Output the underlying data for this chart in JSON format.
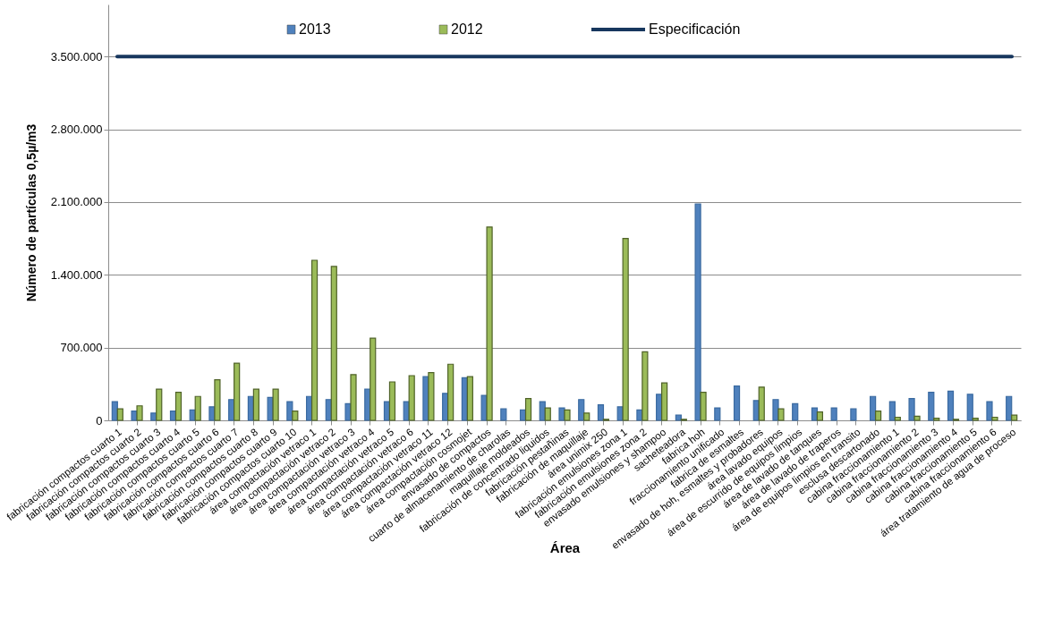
{
  "chart_data": {
    "type": "bar",
    "xlabel": "Área",
    "ylabel": "Número de partículas  0,5µ/m3",
    "categories": [
      "fabricación compactos cuarto 1",
      "fabricación compactos cuarto 2",
      "fabricación compactos cuarto 3",
      "fabricación compactos cuarto 4",
      "fabricación compactos cuarto 5",
      "fabricación compactos cuarto 6",
      "fabricación compactos cuarto 7",
      "fabricación compactos cuarto 8",
      "fabricación compactos cuarto 9",
      "fabricación compactos cuarto 10",
      "área compactación vetraco 1",
      "área compactación vetraco 2",
      "área compactación vetraco 3",
      "área compactación vetraco 4",
      "área compactación vetraco 5",
      "área compactación vetraco 6",
      "área compactación vetraco 11",
      "área compactación vetraco 12",
      "área  compactación cosmojet",
      "envasado de compactos",
      "cuarto de almacenamiento de charolas",
      "maquillaje  moldeados",
      "fabricación de concentrado liquidos",
      "fabricación  pestañinas",
      "fabricación de maquillaje",
      "área unimix 250",
      "fabricación emulsiones zona 1",
      "fabricación emulsiones zona 2",
      "envasado emulsiones y shampoo",
      "sacheteadora",
      "fabrica hoh",
      "fraccionamiento  unificado",
      "fabrica de esmaltes",
      "envasado de hoh, esmaltes y probadores",
      "área lavado equipos",
      "área de escurrido de equipos limpios",
      "área de lavado de tanques",
      "área de lavado de traperos",
      "área de equipos limpios en transito",
      "esclusa  descartonado",
      "cabina fraccionamiento 1",
      "cabina fraccionamiento 2",
      "cabina fraccionamiento 3",
      "cabina fraccionamiento 4",
      "cabina fraccionamiento 5",
      "cabina fraccionamiento 6",
      "área tratamiento de agua de proceso"
    ],
    "series": [
      {
        "name": "2013",
        "color": "#4f81bd",
        "values": [
          180000,
          90000,
          70000,
          90000,
          100000,
          130000,
          200000,
          230000,
          220000,
          180000,
          230000,
          200000,
          160000,
          300000,
          180000,
          180000,
          420000,
          260000,
          410000,
          240000,
          110000,
          100000,
          180000,
          120000,
          200000,
          150000,
          130000,
          100000,
          250000,
          50000,
          2080000,
          120000,
          330000,
          190000,
          200000,
          160000,
          120000,
          120000,
          110000,
          230000,
          180000,
          210000,
          270000,
          280000,
          250000,
          180000,
          230000
        ]
      },
      {
        "name": "2012",
        "color": "#9bbb59",
        "values": [
          110000,
          140000,
          300000,
          270000,
          230000,
          390000,
          550000,
          300000,
          300000,
          90000,
          1540000,
          1480000,
          440000,
          790000,
          370000,
          430000,
          460000,
          540000,
          420000,
          1860000,
          null,
          210000,
          120000,
          100000,
          70000,
          10000,
          1750000,
          660000,
          360000,
          10000,
          270000,
          null,
          null,
          320000,
          110000,
          null,
          80000,
          null,
          null,
          90000,
          30000,
          40000,
          20000,
          10000,
          20000,
          30000,
          50000
        ]
      }
    ],
    "ref_lines": [
      {
        "axis": "y",
        "value": 3500000,
        "label": "Especificación",
        "color": "#17375e"
      }
    ],
    "ylim": [
      0,
      4000000
    ],
    "yticks": [
      0,
      {
        "value": 700000,
        "label": "700.000"
      },
      {
        "value": 1400000,
        "label": "1.400.000"
      },
      {
        "value": 2100000,
        "label": "2.100.000"
      },
      {
        "value": 2800000,
        "label": "2.800.000"
      },
      {
        "value": 3500000,
        "label": "3.500.000"
      }
    ],
    "grid": "y",
    "legend": "top"
  }
}
